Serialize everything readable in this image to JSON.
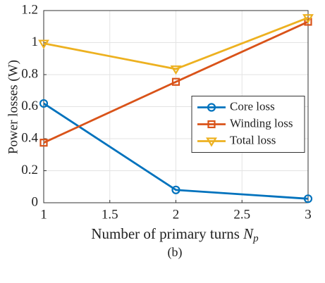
{
  "chart_data": {
    "type": "line",
    "xlabel": {
      "text": "Number of primary turns",
      "symbol": "N",
      "subscript": "p"
    },
    "ylabel": "Power losses (W)",
    "caption": "(b)",
    "x": [
      1,
      2,
      3
    ],
    "series": [
      {
        "name": "Core loss",
        "color": "#0072BD",
        "marker": "circle",
        "values": [
          0.62,
          0.08,
          0.025
        ]
      },
      {
        "name": "Winding loss",
        "color": "#D95319",
        "marker": "square",
        "values": [
          0.375,
          0.755,
          1.13
        ]
      },
      {
        "name": "Total loss",
        "color": "#EDB120",
        "marker": "triangle-down",
        "values": [
          0.995,
          0.835,
          1.155
        ]
      }
    ],
    "xlim": [
      1,
      3
    ],
    "xticks": [
      1,
      1.5,
      2,
      2.5,
      3
    ],
    "ylim": [
      0,
      1.2
    ],
    "yticks": [
      0,
      0.2,
      0.4,
      0.6,
      0.8,
      1,
      1.2
    ],
    "grid": true,
    "legend": "east"
  }
}
